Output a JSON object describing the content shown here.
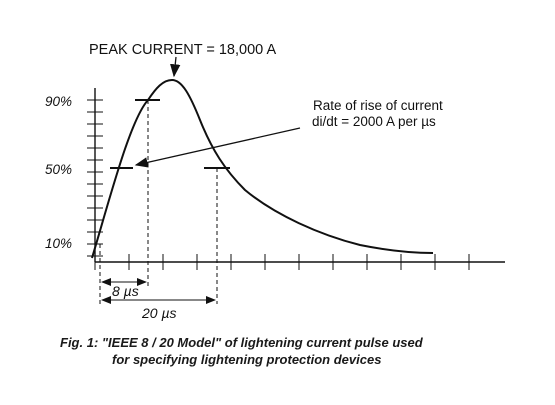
{
  "diagram": {
    "title_annotation": "PEAK CURRENT = 18,000 A",
    "rate_annotation_line1": "Rate of rise of current",
    "rate_annotation_line2": "di/dt = 2000 A per µs",
    "y_labels": [
      "90%",
      "50%",
      "10%"
    ],
    "rise_time_label": "8 µs",
    "half_value_label": "20 µs",
    "line_color": "#111111"
  },
  "caption": {
    "line1": "Fig. 1: \"IEEE 8 / 20 Model\" of lightening current pulse used",
    "line2": "for specifying lightening protection devices"
  }
}
